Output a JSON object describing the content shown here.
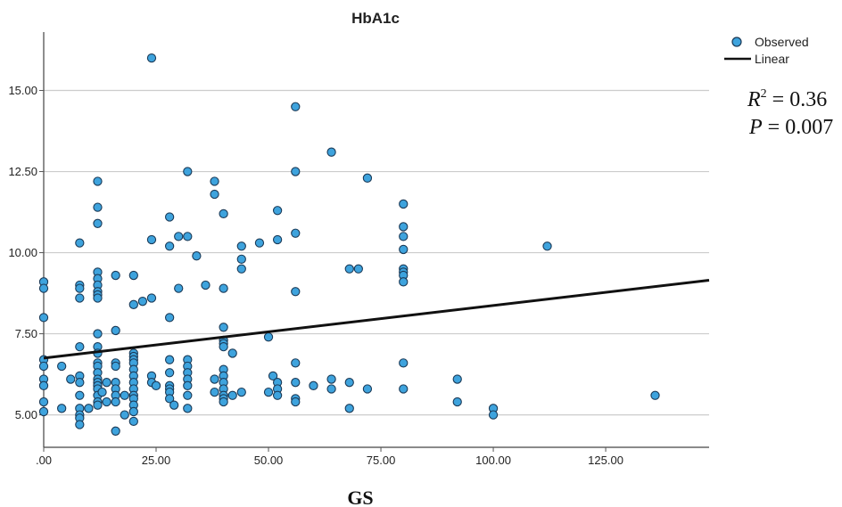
{
  "chart_data": {
    "type": "scatter",
    "title": "HbA1c",
    "xlabel": "GS",
    "ylabel": "",
    "xlim": [
      0,
      148
    ],
    "ylim": [
      4.0,
      16.8
    ],
    "xticks": [
      0,
      25,
      50,
      75,
      100,
      125
    ],
    "xtick_labels": [
      ".00",
      "25.00",
      "50.00",
      "75.00",
      "100.00",
      "125.00"
    ],
    "yticks": [
      5,
      7.5,
      10,
      12.5,
      15
    ],
    "ytick_labels": [
      "5.00",
      "7.50",
      "10.00",
      "12.50",
      "15.00"
    ],
    "grid": "horizontal",
    "legend_position": "top-right",
    "legend": [
      {
        "label": "Observed",
        "marker": "circle"
      },
      {
        "label": "Linear",
        "marker": "line"
      }
    ],
    "annotations": {
      "r2_var": "R",
      "r2_sup": "2",
      "r2_value": " = 0.36",
      "p_var": "P",
      "p_value": " = 0.007"
    },
    "colors": {
      "point_fill": "#3ea3dd",
      "point_stroke": "#1b3a57",
      "line": "#111111",
      "grid": "#cccccc"
    },
    "regression_line": {
      "x": [
        0,
        148
      ],
      "y": [
        6.75,
        9.15
      ]
    },
    "series": [
      {
        "name": "Observed",
        "points": [
          [
            0,
            9.1
          ],
          [
            0,
            8.9
          ],
          [
            0,
            8.0
          ],
          [
            0,
            6.7
          ],
          [
            0,
            6.5
          ],
          [
            0,
            6.1
          ],
          [
            0,
            5.9
          ],
          [
            0,
            5.4
          ],
          [
            0,
            5.1
          ],
          [
            4,
            6.5
          ],
          [
            4,
            5.2
          ],
          [
            6,
            6.1
          ],
          [
            8,
            10.3
          ],
          [
            8,
            9.0
          ],
          [
            8,
            8.9
          ],
          [
            8,
            8.6
          ],
          [
            8,
            7.1
          ],
          [
            8,
            6.2
          ],
          [
            8,
            6.0
          ],
          [
            8,
            5.6
          ],
          [
            8,
            5.2
          ],
          [
            8,
            5.0
          ],
          [
            8,
            4.9
          ],
          [
            8,
            4.7
          ],
          [
            10,
            5.2
          ],
          [
            12,
            12.2
          ],
          [
            12,
            11.4
          ],
          [
            12,
            10.9
          ],
          [
            12,
            9.4
          ],
          [
            12,
            9.2
          ],
          [
            12,
            9.0
          ],
          [
            12,
            8.8
          ],
          [
            12,
            8.7
          ],
          [
            12,
            8.6
          ],
          [
            12,
            7.5
          ],
          [
            12,
            7.1
          ],
          [
            12,
            6.9
          ],
          [
            12,
            6.6
          ],
          [
            12,
            6.5
          ],
          [
            12,
            6.3
          ],
          [
            12,
            6.1
          ],
          [
            12,
            6.0
          ],
          [
            12,
            5.9
          ],
          [
            12,
            5.8
          ],
          [
            12,
            5.6
          ],
          [
            12,
            5.4
          ],
          [
            12,
            5.3
          ],
          [
            13,
            5.7
          ],
          [
            14,
            6.0
          ],
          [
            14,
            5.4
          ],
          [
            16,
            9.3
          ],
          [
            16,
            7.6
          ],
          [
            16,
            6.6
          ],
          [
            16,
            6.5
          ],
          [
            16,
            6.0
          ],
          [
            16,
            5.8
          ],
          [
            16,
            5.6
          ],
          [
            16,
            5.4
          ],
          [
            16,
            4.5
          ],
          [
            18,
            5.6
          ],
          [
            18,
            5.0
          ],
          [
            20,
            9.3
          ],
          [
            20,
            8.4
          ],
          [
            20,
            6.9
          ],
          [
            20,
            6.8
          ],
          [
            20,
            6.7
          ],
          [
            20,
            6.6
          ],
          [
            20,
            6.4
          ],
          [
            20,
            6.2
          ],
          [
            20,
            6.0
          ],
          [
            20,
            5.8
          ],
          [
            20,
            5.6
          ],
          [
            20,
            5.5
          ],
          [
            20,
            5.3
          ],
          [
            20,
            5.1
          ],
          [
            20,
            4.8
          ],
          [
            22,
            8.5
          ],
          [
            24,
            16.0
          ],
          [
            24,
            10.4
          ],
          [
            24,
            8.6
          ],
          [
            24,
            6.2
          ],
          [
            24,
            6.0
          ],
          [
            25,
            5.9
          ],
          [
            28,
            11.1
          ],
          [
            28,
            10.2
          ],
          [
            28,
            8.0
          ],
          [
            28,
            6.7
          ],
          [
            28,
            6.3
          ],
          [
            28,
            5.9
          ],
          [
            28,
            5.8
          ],
          [
            28,
            5.7
          ],
          [
            28,
            5.5
          ],
          [
            29,
            5.3
          ],
          [
            30,
            10.5
          ],
          [
            30,
            8.9
          ],
          [
            32,
            12.5
          ],
          [
            32,
            10.5
          ],
          [
            32,
            6.7
          ],
          [
            32,
            6.5
          ],
          [
            32,
            6.3
          ],
          [
            32,
            6.1
          ],
          [
            32,
            5.9
          ],
          [
            32,
            5.6
          ],
          [
            32,
            5.2
          ],
          [
            34,
            9.9
          ],
          [
            36,
            9.0
          ],
          [
            38,
            12.2
          ],
          [
            38,
            11.8
          ],
          [
            38,
            6.1
          ],
          [
            38,
            5.7
          ],
          [
            40,
            11.2
          ],
          [
            40,
            8.9
          ],
          [
            40,
            7.7
          ],
          [
            40,
            7.3
          ],
          [
            40,
            7.2
          ],
          [
            40,
            7.1
          ],
          [
            40,
            6.4
          ],
          [
            40,
            6.2
          ],
          [
            40,
            6.0
          ],
          [
            40,
            5.8
          ],
          [
            40,
            5.6
          ],
          [
            40,
            5.5
          ],
          [
            40,
            5.4
          ],
          [
            42,
            6.9
          ],
          [
            42,
            5.6
          ],
          [
            44,
            10.2
          ],
          [
            44,
            9.8
          ],
          [
            44,
            9.5
          ],
          [
            44,
            5.7
          ],
          [
            48,
            10.3
          ],
          [
            50,
            7.4
          ],
          [
            50,
            5.7
          ],
          [
            51,
            6.2
          ],
          [
            52,
            11.3
          ],
          [
            52,
            10.4
          ],
          [
            52,
            6.0
          ],
          [
            52,
            5.8
          ],
          [
            52,
            5.6
          ],
          [
            56,
            14.5
          ],
          [
            56,
            12.5
          ],
          [
            56,
            10.6
          ],
          [
            56,
            8.8
          ],
          [
            56,
            6.6
          ],
          [
            56,
            6.0
          ],
          [
            56,
            5.5
          ],
          [
            56,
            5.4
          ],
          [
            60,
            5.9
          ],
          [
            64,
            13.1
          ],
          [
            64,
            6.1
          ],
          [
            64,
            5.8
          ],
          [
            68,
            9.5
          ],
          [
            68,
            6.0
          ],
          [
            68,
            5.2
          ],
          [
            70,
            9.5
          ],
          [
            72,
            12.3
          ],
          [
            72,
            5.8
          ],
          [
            80,
            11.5
          ],
          [
            80,
            10.8
          ],
          [
            80,
            10.5
          ],
          [
            80,
            10.1
          ],
          [
            80,
            9.5
          ],
          [
            80,
            9.4
          ],
          [
            80,
            9.3
          ],
          [
            80,
            9.1
          ],
          [
            80,
            6.6
          ],
          [
            80,
            5.8
          ],
          [
            92,
            6.1
          ],
          [
            92,
            5.4
          ],
          [
            100,
            5.2
          ],
          [
            100,
            5.0
          ],
          [
            112,
            10.2
          ],
          [
            136,
            5.6
          ]
        ]
      }
    ]
  }
}
